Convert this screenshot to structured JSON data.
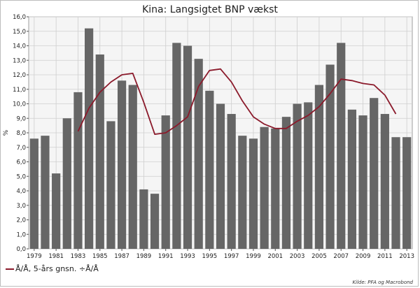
{
  "chart_data": {
    "type": "bar",
    "title": "Kina: Langsigtet BNP vækst",
    "ylabel": "%",
    "xlabel": "",
    "ylim": [
      0,
      16
    ],
    "ytick_step": 1.0,
    "grid": true,
    "legend_position": "bottom-left",
    "x": [
      1979,
      1980,
      1981,
      1982,
      1983,
      1984,
      1985,
      1986,
      1987,
      1988,
      1989,
      1990,
      1991,
      1992,
      1993,
      1994,
      1995,
      1996,
      1997,
      1998,
      1999,
      2000,
      2001,
      2002,
      2003,
      2004,
      2005,
      2006,
      2007,
      2008,
      2009,
      2010,
      2011,
      2012,
      2013
    ],
    "x_tick_labels": [
      "1979",
      "1981",
      "1983",
      "1985",
      "1987",
      "1989",
      "1991",
      "1993",
      "1995",
      "1997",
      "1999",
      "2001",
      "2003",
      "2005",
      "2007",
      "2009",
      "2011",
      "2013"
    ],
    "series": [
      {
        "type": "bar",
        "color": "#666666",
        "values": [
          7.6,
          7.8,
          5.2,
          9.0,
          10.8,
          15.2,
          13.4,
          8.8,
          11.6,
          11.3,
          4.1,
          3.8,
          9.2,
          14.2,
          14.0,
          13.1,
          10.9,
          10.0,
          9.3,
          7.8,
          7.6,
          8.4,
          8.3,
          9.1,
          10.0,
          10.1,
          11.3,
          12.7,
          14.2,
          9.6,
          9.2,
          10.4,
          9.3,
          7.7,
          7.7
        ]
      },
      {
        "type": "line",
        "name": "Å/Å, 5-års gnsn. ÷Å/Å",
        "color": "#8b1a2b",
        "x": [
          1983,
          1984,
          1985,
          1986,
          1987,
          1988,
          1989,
          1990,
          1991,
          1992,
          1993,
          1994,
          1995,
          1996,
          1997,
          1998,
          1999,
          2000,
          2001,
          2002,
          2003,
          2004,
          2005,
          2006,
          2007,
          2008,
          2009,
          2010,
          2011,
          2012
        ],
        "values": [
          8.1,
          9.7,
          10.8,
          11.5,
          12.0,
          12.1,
          10.1,
          7.9,
          8.0,
          8.5,
          9.1,
          11.2,
          12.3,
          12.4,
          11.5,
          10.2,
          9.1,
          8.6,
          8.3,
          8.3,
          8.8,
          9.2,
          9.8,
          10.7,
          11.7,
          11.6,
          11.4,
          11.3,
          10.6,
          9.3
        ]
      }
    ],
    "source": "Kilde: PFA og Macrobond"
  }
}
